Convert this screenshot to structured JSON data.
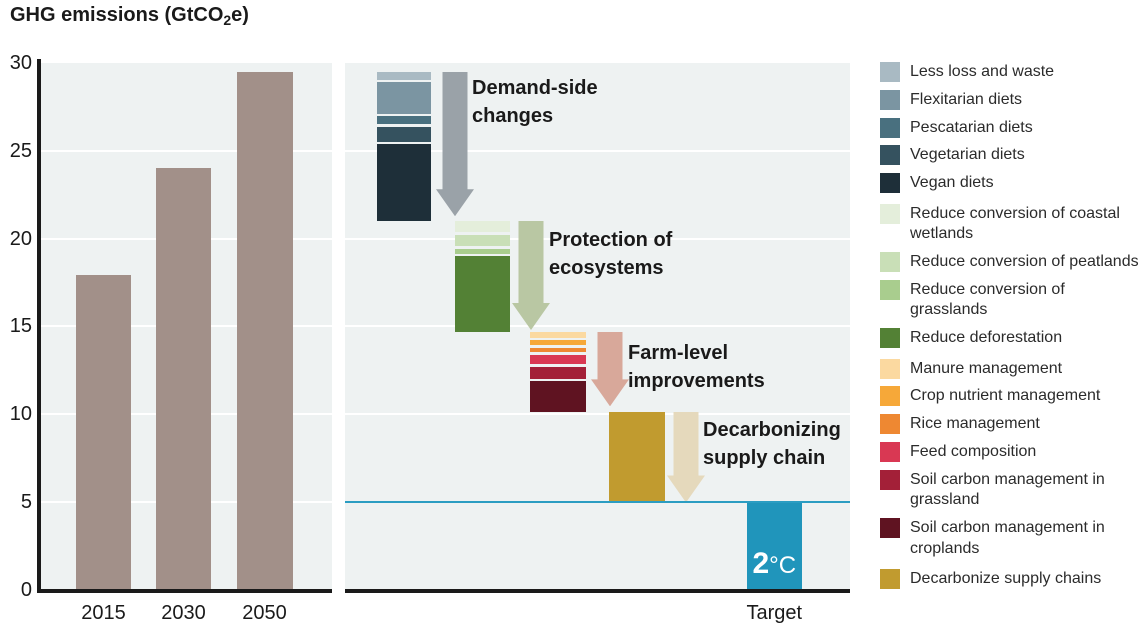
{
  "title": {
    "pre": "GHG emissions (GtCO",
    "sub": "2",
    "post": "e)"
  },
  "colors": {
    "panel_bg": "#eef2f2",
    "grid": "#ffffff",
    "axis": "#1a1a1a",
    "bar": "#a29089",
    "reference_line": "#2b9dc2",
    "target": "#2095bb"
  },
  "chart_data": [
    {
      "type": "bar",
      "title": "GHG emissions (GtCO2e)",
      "categories": [
        "2015",
        "2030",
        "2050"
      ],
      "values": [
        17.9,
        24.0,
        29.5
      ],
      "ylim": [
        0,
        30
      ],
      "yticks": [
        0,
        5,
        10,
        15,
        20,
        25,
        30
      ],
      "bar_color": "#a29089",
      "grid": true
    },
    {
      "type": "waterfall",
      "ylim": [
        0,
        30
      ],
      "grid": true,
      "reference_line": {
        "value": 5,
        "color": "#2b9dc2"
      },
      "steps": [
        {
          "label": "Demand-side changes",
          "start": 29.5,
          "end": 21.0,
          "arrow_color": "#9aa2a8",
          "segments": [
            {
              "name": "Less loss and waste",
              "value": 0.5,
              "color": "#a9bac3"
            },
            {
              "name": "Flexitarian diets",
              "value": 1.9,
              "color": "#7b95a2"
            },
            {
              "name": "Pescatarian diets",
              "value": 0.5,
              "color": "#49707f"
            },
            {
              "name": "Vegetarian diets",
              "value": 0.9,
              "color": "#35525f"
            },
            {
              "name": "Vegan diets",
              "value": 4.7,
              "color": "#1e2f39"
            }
          ]
        },
        {
          "label": "Protection of ecosystems",
          "start": 21.0,
          "end": 14.7,
          "arrow_color": "#b9c7a3",
          "segments": [
            {
              "name": "Reduce conversion of coastal wetlands",
              "value": 0.7,
              "color": "#e4eedb"
            },
            {
              "name": "Reduce conversion of peatlands",
              "value": 0.7,
              "color": "#c9dfb7"
            },
            {
              "name": "Reduce conversion of grasslands",
              "value": 0.3,
              "color": "#a9cd8e"
            },
            {
              "name": "Reduce deforestation",
              "value": 4.6,
              "color": "#538135"
            }
          ]
        },
        {
          "label": "Farm-level improvements",
          "start": 14.7,
          "end": 10.1,
          "arrow_color": "#d8a89a",
          "segments": [
            {
              "name": "Manure management",
              "value": 0.4,
              "color": "#fbd9a0"
            },
            {
              "name": "Crop nutrient management",
              "value": 0.35,
              "color": "#f6a839"
            },
            {
              "name": "Rice management",
              "value": 0.3,
              "color": "#ee8832"
            },
            {
              "name": "Feed composition",
              "value": 0.65,
              "color": "#d93853"
            },
            {
              "name": "Soil carbon management in grassland",
              "value": 0.8,
              "color": "#a32038"
            },
            {
              "name": "Soil carbon management in croplands",
              "value": 2.1,
              "color": "#5f1321"
            }
          ]
        },
        {
          "label": "Decarbonizing supply chain",
          "start": 10.1,
          "end": 5.0,
          "arrow_color": "#e5d9bc",
          "segments": [
            {
              "name": "Decarbonize supply chains",
              "value": 5.1,
              "color": "#c19b2f"
            }
          ]
        }
      ],
      "target": {
        "label": "Target",
        "value": 5.0,
        "color": "#2095bb",
        "annotation": {
          "number": "2",
          "unit": "°C"
        }
      }
    }
  ],
  "legend": {
    "groups": [
      {
        "items": [
          {
            "label": "Less loss and waste",
            "color": "#a9bac3"
          },
          {
            "label": "Flexitarian diets",
            "color": "#7b95a2"
          },
          {
            "label": "Pescatarian diets",
            "color": "#49707f"
          },
          {
            "label": "Vegetarian diets",
            "color": "#35525f"
          },
          {
            "label": "Vegan diets",
            "color": "#1e2f39"
          }
        ]
      },
      {
        "items": [
          {
            "label": "Reduce conversion of coastal wetlands",
            "color": "#e4eedb"
          },
          {
            "label": "Reduce conversion of peatlands",
            "color": "#c9dfb7"
          },
          {
            "label": "Reduce conversion of grasslands",
            "color": "#a9cd8e"
          },
          {
            "label": "Reduce deforestation",
            "color": "#538135"
          }
        ]
      },
      {
        "items": [
          {
            "label": "Manure management",
            "color": "#fbd9a0"
          },
          {
            "label": "Crop nutrient management",
            "color": "#f6a839"
          },
          {
            "label": "Rice management",
            "color": "#ee8832"
          },
          {
            "label": "Feed composition",
            "color": "#d93853"
          },
          {
            "label": "Soil carbon management in grassland",
            "color": "#a32038"
          },
          {
            "label": "Soil carbon management in croplands",
            "color": "#5f1321"
          }
        ]
      },
      {
        "items": [
          {
            "label": "Decarbonize supply chains",
            "color": "#c19b2f"
          }
        ]
      }
    ]
  }
}
